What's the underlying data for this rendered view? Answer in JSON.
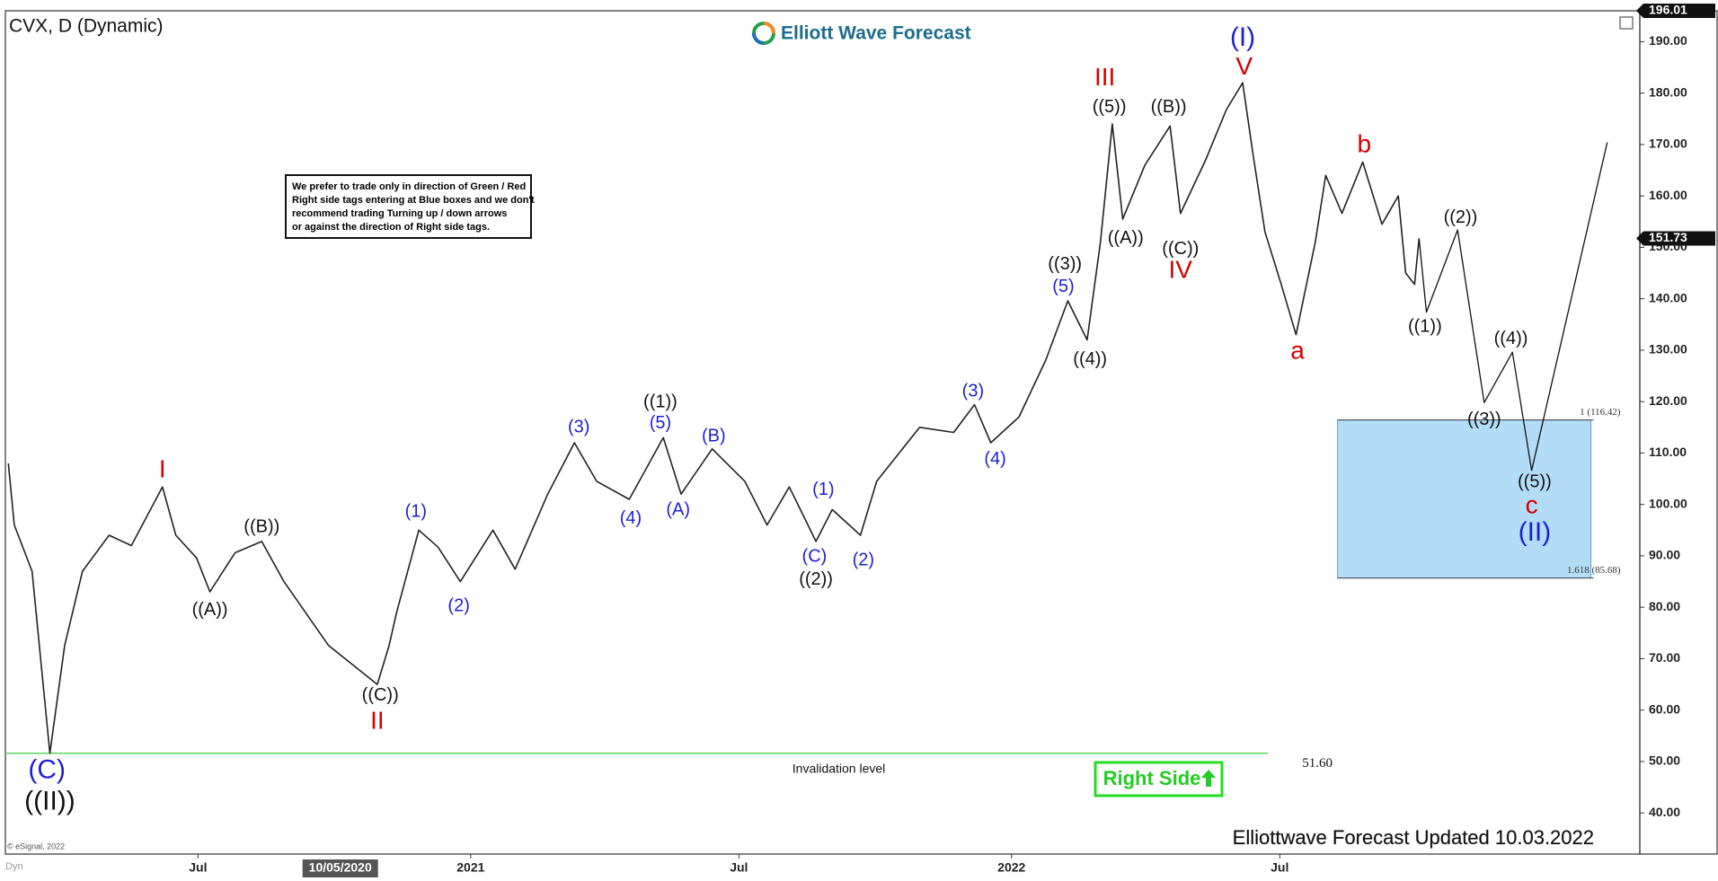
{
  "chart_data": {
    "type": "line",
    "title": "CVX, D (Dynamic)",
    "logo": "Elliott Wave Forecast",
    "note": [
      "We prefer to trade only in direction of Green / Red",
      "Right side tags entering at Blue boxes and we don't",
      "recommend trading Turning up / down arrows",
      "or against the direction of Right side tags."
    ],
    "footer": "Elliottwave Forecast Updated 10.03.2022",
    "copyright": "© eSignal, 2022",
    "corner_label": "Dyn",
    "right_side": "Right Side",
    "xlim": [
      "2020-02-22",
      "2023-03-01"
    ],
    "ylim": [
      32,
      196.01
    ],
    "grid": false,
    "xticks": [
      {
        "value": "2020-07-01",
        "label": "Jul"
      },
      {
        "value": "2021-01-01",
        "label": "2021"
      },
      {
        "value": "2021-07-01",
        "label": "Jul"
      },
      {
        "value": "2022-01-01",
        "label": "2022"
      },
      {
        "value": "2022-07-01",
        "label": "Jul"
      }
    ],
    "cursor": {
      "value": "2020-10-05",
      "label": "10/05/2020"
    },
    "yticks": [
      {
        "value": 40,
        "label": "40.00"
      },
      {
        "value": 50,
        "label": "50.00"
      },
      {
        "value": 60,
        "label": "60.00"
      },
      {
        "value": 70,
        "label": "70.00"
      },
      {
        "value": 80,
        "label": "80.00"
      },
      {
        "value": 90,
        "label": "90.00"
      },
      {
        "value": 100,
        "label": "100.00"
      },
      {
        "value": 110,
        "label": "110.00"
      },
      {
        "value": 120,
        "label": "120.00"
      },
      {
        "value": 130,
        "label": "130.00"
      },
      {
        "value": 140,
        "label": "140.00"
      },
      {
        "value": 150,
        "label": "150.00"
      },
      {
        "value": 160,
        "label": "160.00"
      },
      {
        "value": 170,
        "label": "170.00"
      },
      {
        "value": 180,
        "label": "180.00"
      },
      {
        "value": 190,
        "label": "190.00"
      }
    ],
    "top_tag": {
      "value": 196.01,
      "label": "196.01"
    },
    "last_tag": {
      "value": 151.73,
      "label": "151.73"
    },
    "series": [
      {
        "color": "#222222",
        "x": [
          "2020-02-24",
          "2020-02-28",
          "2020-03-11",
          "2020-03-23",
          "2020-04-02",
          "2020-04-14",
          "2020-05-02",
          "2020-05-17",
          "2020-06-07",
          "2020-06-16",
          "2020-06-30",
          "2020-07-09",
          "2020-07-26",
          "2020-08-13",
          "2020-08-28",
          "2020-09-27",
          "2020-10-30",
          "2020-11-07",
          "2020-11-12",
          "2020-11-27",
          "2020-12-10",
          "2020-12-25",
          "2021-01-16",
          "2021-01-31",
          "2021-02-22",
          "2021-03-12",
          "2021-03-27",
          "2021-04-18",
          "2021-05-11",
          "2021-05-23",
          "2021-06-13",
          "2021-07-05",
          "2021-07-20",
          "2021-08-04",
          "2021-08-22",
          "2021-09-02",
          "2021-09-21",
          "2021-10-02",
          "2021-10-31",
          "2021-11-23",
          "2021-12-07",
          "2021-12-18",
          "2022-01-06",
          "2022-01-24",
          "2022-02-08",
          "2022-02-21",
          "2022-03-02",
          "2022-03-10",
          "2022-03-17",
          "2022-04-01",
          "2022-04-18",
          "2022-04-25",
          "2022-05-12",
          "2022-05-26",
          "2022-06-06",
          "2022-06-13",
          "2022-06-21",
          "2022-07-02",
          "2022-07-12",
          "2022-07-25",
          "2022-08-01",
          "2022-08-12",
          "2022-08-26",
          "2022-09-08",
          "2022-09-19",
          "2022-09-24",
          "2022-09-30",
          "2022-10-03"
        ],
        "values": [
          108,
          96,
          87,
          51.6,
          72.6,
          87,
          94,
          92,
          103.4,
          94,
          89.6,
          83,
          90.6,
          92.8,
          85,
          72.6,
          65,
          72.6,
          79,
          95,
          91.7,
          85,
          95,
          87.4,
          102,
          112,
          104.5,
          101,
          113,
          102,
          110.8,
          104.5,
          96,
          103.4,
          92.8,
          99,
          94,
          104.5,
          115,
          114,
          119.4,
          112,
          117,
          128,
          139.6,
          132,
          151,
          174,
          155.5,
          166,
          173.6,
          156.6,
          167,
          176.8,
          182,
          168,
          153,
          142.8,
          133,
          151,
          164,
          156.6,
          166.6,
          154.5,
          160,
          145,
          142.8,
          151.73
        ]
      },
      {
        "color": "#111111",
        "x": [
          "2022-10-03",
          "2022-10-08",
          "2022-10-29",
          "2022-11-16",
          "2022-12-05",
          "2022-12-18",
          "2023-02-07"
        ],
        "values": [
          151.73,
          137.4,
          153.4,
          119.8,
          129.6,
          106.6,
          170.4
        ]
      }
    ],
    "target_zone": {
      "from": "2022-08-09",
      "to": "2023-01-27",
      "top": 116.42,
      "bottom": 85.68,
      "top_label": "1 (116.42)",
      "bottom_label": "1.618 (85.68)",
      "color": "#b3dcf7"
    },
    "invalidation": {
      "value": 51.6,
      "label": "51.60",
      "text": "Invalidation level",
      "to": "2022-06-23",
      "color": "#5cd65c"
    },
    "annotations": [
      {
        "text": "(C)",
        "x": "2020-03-21",
        "y": 48.1,
        "color": "#1f1fd1",
        "size": "large"
      },
      {
        "text": "((II))",
        "x": "2020-03-23",
        "y": 42,
        "color": "#111111",
        "size": "large"
      },
      {
        "text": "I",
        "x": "2020-06-07",
        "y": 106.6,
        "color": "#d40000",
        "size": "medium"
      },
      {
        "text": "((A))",
        "x": "2020-07-09",
        "y": 79.4,
        "color": "#111111",
        "size": "normal"
      },
      {
        "text": "((B))",
        "x": "2020-08-13",
        "y": 95.5,
        "color": "#111111",
        "size": "normal"
      },
      {
        "text": "((C))",
        "x": "2020-11-01",
        "y": 62.8,
        "color": "#111111",
        "size": "normal"
      },
      {
        "text": "II",
        "x": "2020-10-30",
        "y": 57.7,
        "color": "#d40000",
        "size": "medium"
      },
      {
        "text": "(1)",
        "x": "2020-11-25",
        "y": 98.5,
        "color": "#1f1fd1",
        "size": "normal"
      },
      {
        "text": "(2)",
        "x": "2020-12-24",
        "y": 80.2,
        "color": "#1f1fd1",
        "size": "normal"
      },
      {
        "text": "(3)",
        "x": "2021-03-15",
        "y": 114.9,
        "color": "#1f1fd1",
        "size": "normal"
      },
      {
        "text": "(4)",
        "x": "2021-04-19",
        "y": 97.2,
        "color": "#1f1fd1",
        "size": "normal"
      },
      {
        "text": "(5)",
        "x": "2021-05-09",
        "y": 115.7,
        "color": "#1f1fd1",
        "size": "normal"
      },
      {
        "text": "((1))",
        "x": "2021-05-09",
        "y": 119.8,
        "color": "#111111",
        "size": "normal"
      },
      {
        "text": "(A)",
        "x": "2021-05-21",
        "y": 98.9,
        "color": "#1f1fd1",
        "size": "normal"
      },
      {
        "text": "(B)",
        "x": "2021-06-14",
        "y": 113.2,
        "color": "#1f1fd1",
        "size": "normal"
      },
      {
        "text": "(1)",
        "x": "2021-08-27",
        "y": 102.8,
        "color": "#1f1fd1",
        "size": "normal"
      },
      {
        "text": "(C)",
        "x": "2021-08-21",
        "y": 89.8,
        "color": "#1f1fd1",
        "size": "normal"
      },
      {
        "text": "((2))",
        "x": "2021-08-22",
        "y": 85.3,
        "color": "#111111",
        "size": "normal"
      },
      {
        "text": "(2)",
        "x": "2021-09-23",
        "y": 89.1,
        "color": "#1f1fd1",
        "size": "normal"
      },
      {
        "text": "(3)",
        "x": "2021-12-06",
        "y": 121.9,
        "color": "#1f1fd1",
        "size": "normal"
      },
      {
        "text": "(4)",
        "x": "2021-12-21",
        "y": 108.7,
        "color": "#1f1fd1",
        "size": "normal"
      },
      {
        "text": "(5)",
        "x": "2022-02-05",
        "y": 142.3,
        "color": "#1f1fd1",
        "size": "normal"
      },
      {
        "text": "((3))",
        "x": "2022-02-06",
        "y": 146.6,
        "color": "#111111",
        "size": "normal"
      },
      {
        "text": "((4))",
        "x": "2022-02-23",
        "y": 128.1,
        "color": "#111111",
        "size": "normal"
      },
      {
        "text": "III",
        "x": "2022-03-05",
        "y": 182.8,
        "color": "#d40000",
        "size": "medium"
      },
      {
        "text": "((5))",
        "x": "2022-03-08",
        "y": 177.2,
        "color": "#111111",
        "size": "normal"
      },
      {
        "text": "((A))",
        "x": "2022-03-19",
        "y": 151.7,
        "color": "#111111",
        "size": "normal"
      },
      {
        "text": "((B))",
        "x": "2022-04-17",
        "y": 177.2,
        "color": "#111111",
        "size": "normal"
      },
      {
        "text": "((C))",
        "x": "2022-04-25",
        "y": 149.6,
        "color": "#111111",
        "size": "normal"
      },
      {
        "text": "IV",
        "x": "2022-04-25",
        "y": 145.3,
        "color": "#d40000",
        "size": "medium"
      },
      {
        "text": "(I)",
        "x": "2022-06-06",
        "y": 190.6,
        "color": "#1f1fd1",
        "size": "large"
      },
      {
        "text": "V",
        "x": "2022-06-07",
        "y": 184.9,
        "color": "#d40000",
        "size": "medium"
      },
      {
        "text": "a",
        "x": "2022-07-13",
        "y": 129.6,
        "color": "#d40000",
        "size": "medium"
      },
      {
        "text": "b",
        "x": "2022-08-27",
        "y": 169.8,
        "color": "#d40000",
        "size": "medium"
      },
      {
        "text": "((1))",
        "x": "2022-10-07",
        "y": 134.5,
        "color": "#111111",
        "size": "normal"
      },
      {
        "text": "((2))",
        "x": "2022-10-31",
        "y": 155.7,
        "color": "#111111",
        "size": "normal"
      },
      {
        "text": "((3))",
        "x": "2022-11-16",
        "y": 116.4,
        "color": "#111111",
        "size": "normal"
      },
      {
        "text": "((4))",
        "x": "2022-12-04",
        "y": 132.1,
        "color": "#111111",
        "size": "normal"
      },
      {
        "text": "((5))",
        "x": "2022-12-20",
        "y": 104.3,
        "color": "#111111",
        "size": "normal"
      },
      {
        "text": "c",
        "x": "2022-12-18",
        "y": 99.6,
        "color": "#d40000",
        "size": "medium"
      },
      {
        "text": "(II)",
        "x": "2022-12-20",
        "y": 94.3,
        "color": "#1f1fd1",
        "size": "large"
      }
    ]
  }
}
